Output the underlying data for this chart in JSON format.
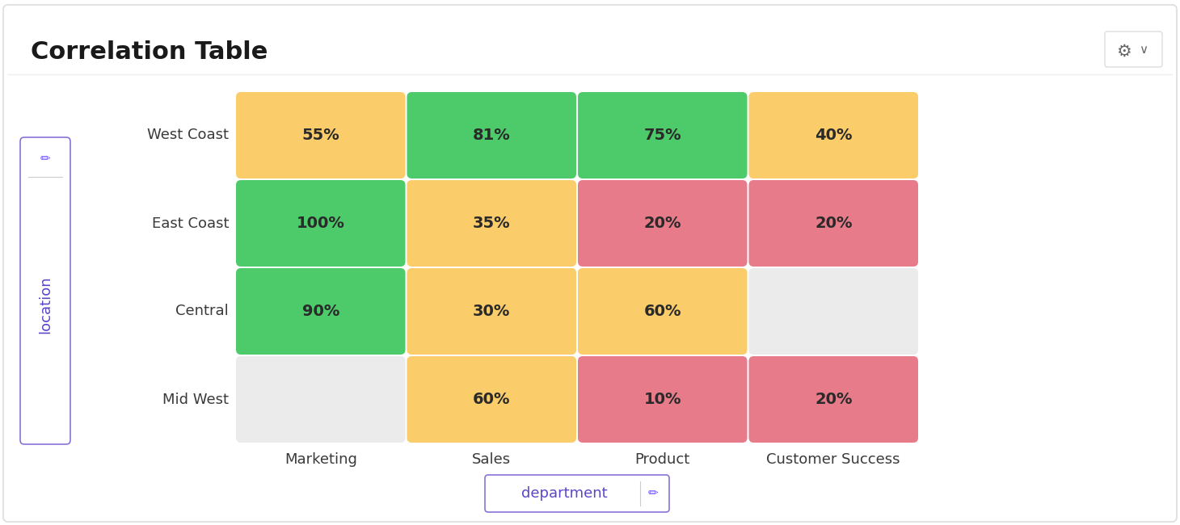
{
  "title": "Correlation Table",
  "rows": [
    "West Coast",
    "East Coast",
    "Central",
    "Mid West"
  ],
  "cols": [
    "Marketing",
    "Sales",
    "Product",
    "Customer Success"
  ],
  "values": [
    [
      "55%",
      "81%",
      "75%",
      "40%"
    ],
    [
      "100%",
      "35%",
      "20%",
      "20%"
    ],
    [
      "90%",
      "30%",
      "60%",
      null
    ],
    [
      null,
      "60%",
      "10%",
      "20%"
    ]
  ],
  "colors": [
    [
      "#FBCC6A",
      "#4DCB6A",
      "#4DCB6A",
      "#FBCC6A"
    ],
    [
      "#4DCB6A",
      "#FBCC6A",
      "#E87B8A",
      "#E87B8A"
    ],
    [
      "#4DCB6A",
      "#FBCC6A",
      "#FBCC6A",
      "#EBEBEB"
    ],
    [
      "#EBEBEB",
      "#FBCC6A",
      "#E87B8A",
      "#E87B8A"
    ]
  ],
  "y_axis_label": "location",
  "x_axis_label": "department",
  "background_color": "#FFFFFF",
  "cell_text_color": "#2A2A2A",
  "title_color": "#1A1A1A",
  "row_label_color": "#3A3A3A",
  "col_label_color": "#3A3A3A",
  "y_axis_label_color": "#5B45C8",
  "x_axis_label_color": "#5B45C8",
  "title_fontsize": 22,
  "label_fontsize": 13,
  "cell_fontsize": 14,
  "axis_label_fontsize": 13
}
